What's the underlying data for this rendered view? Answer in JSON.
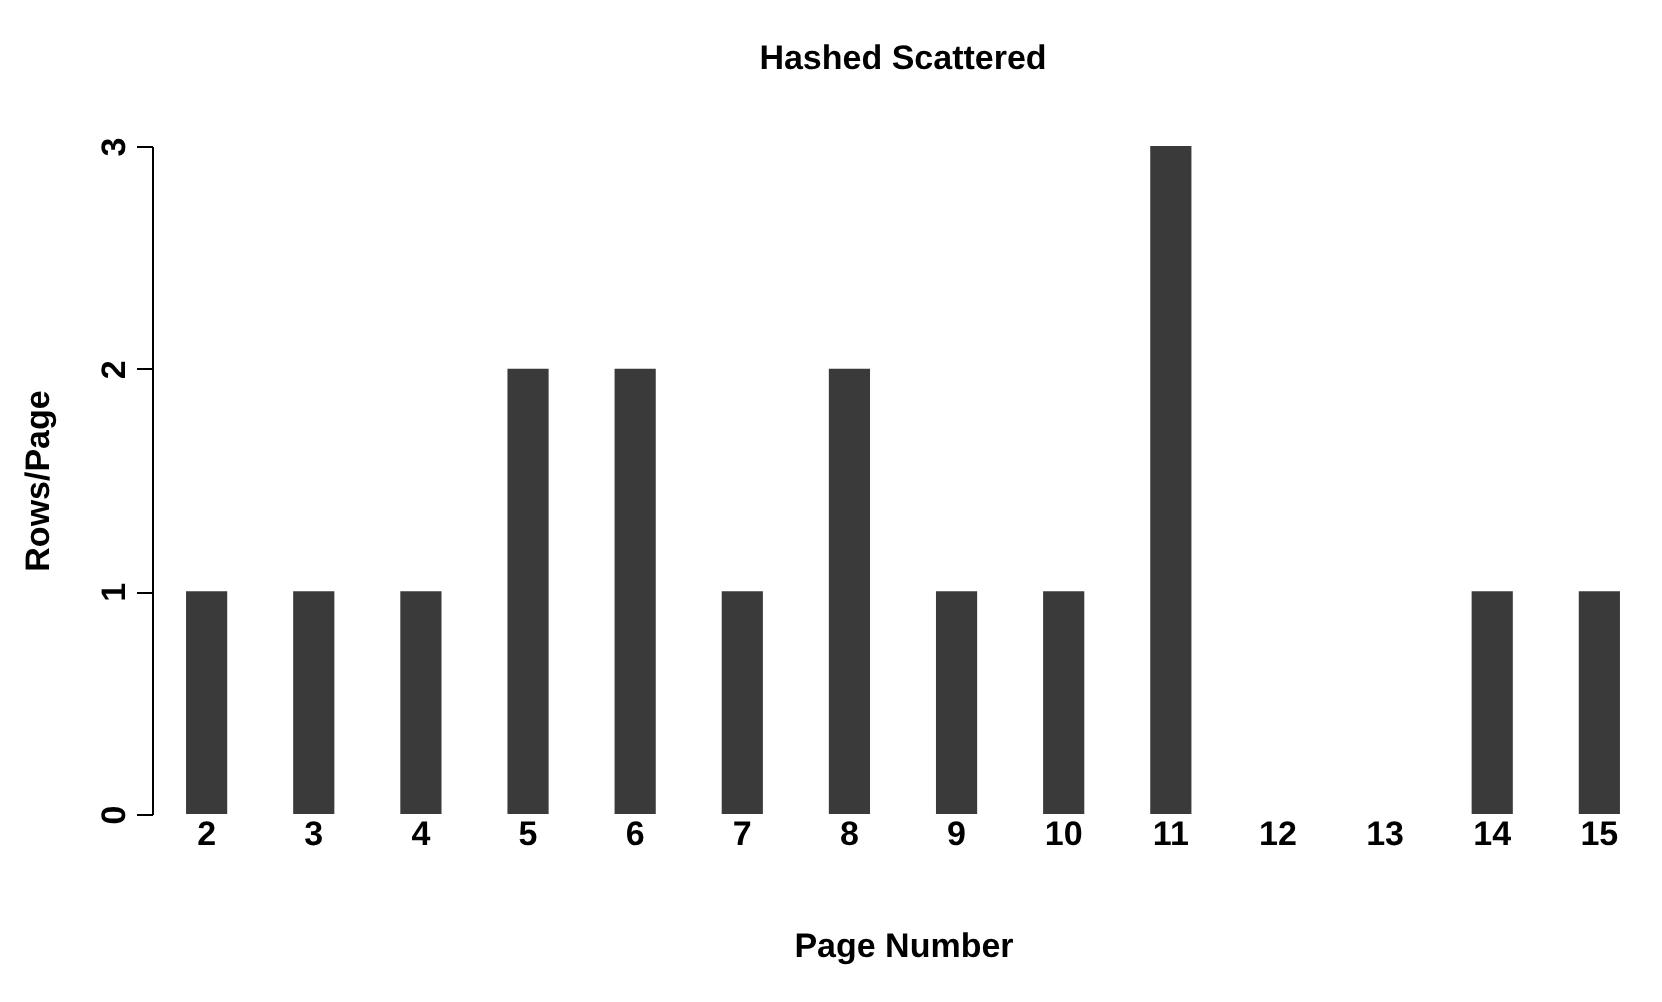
{
  "chart_data": {
    "type": "bar",
    "title": "Hashed Scattered",
    "xlabel": "Page Number",
    "ylabel": "Rows/Page",
    "categories": [
      "2",
      "3",
      "4",
      "5",
      "6",
      "7",
      "8",
      "9",
      "10",
      "11",
      "12",
      "13",
      "14",
      "15"
    ],
    "values": [
      1,
      1,
      1,
      2,
      2,
      1,
      2,
      1,
      1,
      3,
      0,
      0,
      1,
      1
    ],
    "color": "#3a3a3a",
    "ylim": [
      0,
      3
    ],
    "yticks": [
      0,
      1,
      2,
      3
    ],
    "grid": false
  }
}
